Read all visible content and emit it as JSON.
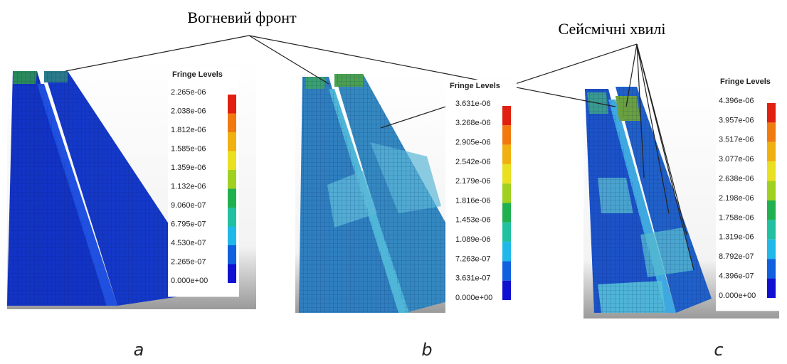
{
  "annotations": [
    "Вогневий фронт",
    "Сейсмічні хвилі"
  ],
  "panels": [
    {
      "label": "a",
      "legend_title": "Fringe Levels",
      "levels": [
        "2.265e-06",
        "2.038e-06",
        "1.812e-06",
        "1.585e-06",
        "1.359e-06",
        "1.132e-06",
        "9.060e-07",
        "6.795e-07",
        "4.530e-07",
        "2.265e-07",
        "0.000e+00"
      ]
    },
    {
      "label": "b",
      "legend_title": "Fringe Levels",
      "levels": [
        "3.631e-06",
        "3.268e-06",
        "2.905e-06",
        "2.542e-06",
        "2.179e-06",
        "1.816e-06",
        "1.453e-06",
        "1.089e-06",
        "7.263e-07",
        "3.631e-07",
        "0.000e+00"
      ]
    },
    {
      "label": "c",
      "legend_title": "Fringe Levels",
      "levels": [
        "4.396e-06",
        "3.957e-06",
        "3.517e-06",
        "3.077e-06",
        "2.638e-06",
        "2.198e-06",
        "1.758e-06",
        "1.319e-06",
        "8.792e-07",
        "4.396e-07",
        "0.000e+00"
      ]
    }
  ]
}
